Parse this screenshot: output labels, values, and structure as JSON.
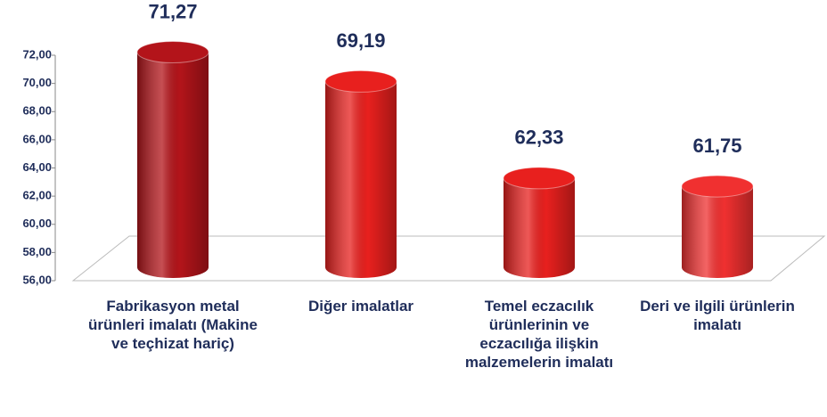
{
  "chart_data": {
    "type": "bar",
    "categories": [
      "Fabrikasyon metal ürünleri imalatı (Makine ve teçhizat hariç)",
      "Diğer imalatlar",
      "Temel eczacılık ürünlerinin ve eczacılığa ilişkin malzemelerin imalatı",
      "Deri ve ilgili ürünlerin imalatı"
    ],
    "values": [
      71.27,
      69.19,
      62.33,
      61.75
    ],
    "value_labels": [
      "71,27",
      "69,19",
      "62,33",
      "61,75"
    ],
    "colors": [
      "#b3141a",
      "#e8201e",
      "#e8201e",
      "#f03030"
    ],
    "ylim": [
      56,
      72
    ],
    "yticks": [
      {
        "value": 56,
        "label": "56,00"
      },
      {
        "value": 58,
        "label": "58,00"
      },
      {
        "value": 60,
        "label": "60,00"
      },
      {
        "value": 62,
        "label": "62,00"
      },
      {
        "value": 64,
        "label": "64,00"
      },
      {
        "value": 66,
        "label": "66,00"
      },
      {
        "value": 68,
        "label": "68,00"
      },
      {
        "value": 70,
        "label": "70,00"
      },
      {
        "value": 72,
        "label": "72,00"
      }
    ]
  }
}
